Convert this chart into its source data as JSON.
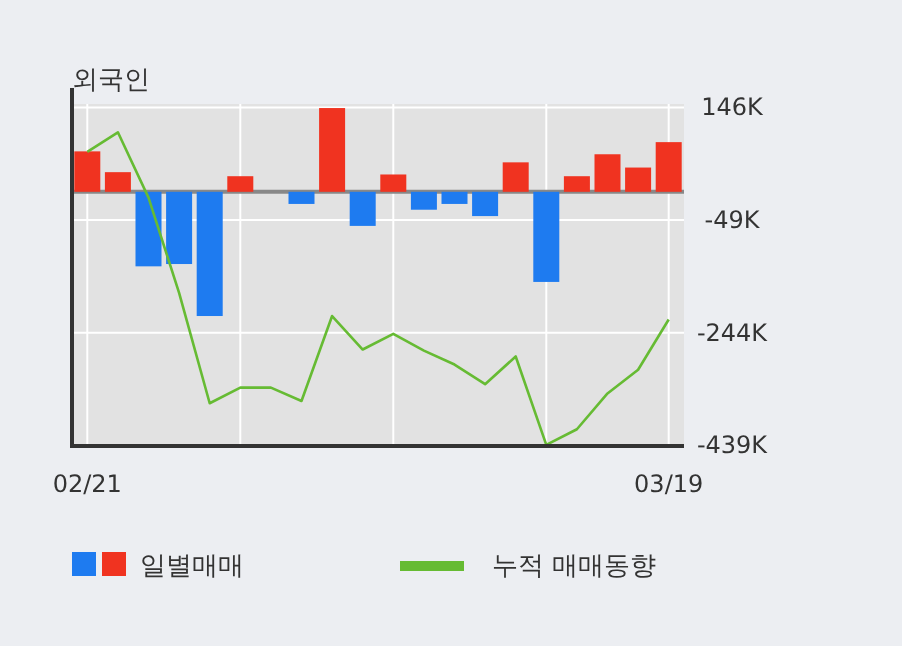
{
  "chart_data": {
    "type": "bar",
    "title": "외국인",
    "categories": [
      "02/21",
      null,
      null,
      null,
      null,
      null,
      null,
      null,
      null,
      null,
      null,
      null,
      null,
      null,
      null,
      null,
      null,
      null,
      null,
      "03/19"
    ],
    "series": [
      {
        "name": "일별매매",
        "values": [
          70,
          34,
          -129,
          -125,
          -215,
          27,
          0,
          -21,
          145,
          -59,
          30,
          -31,
          -21,
          -42,
          51,
          -156,
          27,
          65,
          42,
          86
        ],
        "colors": [
          "#f03320",
          "#f03320",
          "#1e7bf0",
          "#1e7bf0",
          "#1e7bf0",
          "#f03320",
          "#f03320",
          "#1e7bf0",
          "#f03320",
          "#1e7bf0",
          "#f03320",
          "#1e7bf0",
          "#1e7bf0",
          "#1e7bf0",
          "#f03320",
          "#1e7bf0",
          "#f03320",
          "#f03320",
          "#f03320",
          "#f03320"
        ]
      },
      {
        "name": "누적 매매동향",
        "type": "line",
        "color": "#66bb33",
        "values": [
          69,
          103,
          -10,
          -175,
          -366,
          -339,
          -339,
          -362,
          -215,
          -273,
          -246,
          -275,
          -299,
          -333,
          -285,
          -438,
          -411,
          -349,
          -308,
          -221
        ]
      }
    ],
    "ylim": [
      -440,
      152
    ],
    "yticks": [
      {
        "value": 146,
        "label": "146K"
      },
      {
        "value": -49,
        "label": "-49K"
      },
      {
        "value": -244,
        "label": "-244K"
      },
      {
        "value": -439,
        "label": "-439K"
      }
    ],
    "ref_lines": [
      {
        "axis": "y",
        "value": 0,
        "color": "#888888"
      }
    ],
    "grid": true,
    "legend": "bottom"
  }
}
